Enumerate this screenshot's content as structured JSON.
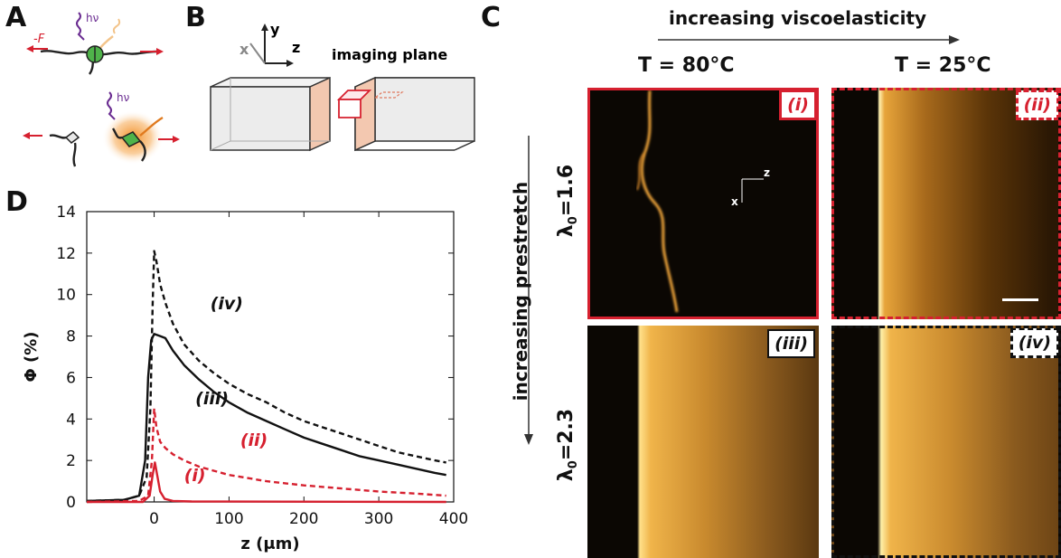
{
  "panels": {
    "a": "A",
    "b": "B",
    "c": "C",
    "d": "D"
  },
  "panel_a": {
    "hv_top": "hν",
    "hv_bottom": "hν",
    "force": "-F"
  },
  "panel_b": {
    "axis_x": "x",
    "axis_y": "y",
    "axis_z": "z",
    "imaging_plane": "imaging plane"
  },
  "panel_c": {
    "top_arrow_label": "increasing viscoelasticity",
    "col_labels": [
      "T = 80°C",
      "T = 25°C"
    ],
    "side_arrow_label": "increasing prestretch",
    "row_labels": [
      "λ0=1.6",
      "λ0=2.3"
    ],
    "row_label_parts": [
      {
        "base": "λ",
        "sub": "0",
        "rest": "=1.6"
      },
      {
        "base": "λ",
        "sub": "0",
        "rest": "=2.3"
      }
    ],
    "tags": [
      "(i)",
      "(ii)",
      "(iii)",
      "(iv)"
    ],
    "inset_axis_z": "z",
    "inset_axis_x": "x",
    "colors": {
      "red_border": "#d6202f",
      "glow": "#f2a53a",
      "background": "#0b0703"
    }
  },
  "chart_data": {
    "type": "line",
    "title": "",
    "xlabel": "z (μm)",
    "ylabel": "Φ (%)",
    "xlim": [
      -90,
      400
    ],
    "ylim": [
      0,
      14
    ],
    "xticks": [
      0,
      100,
      200,
      300,
      400
    ],
    "yticks": [
      0,
      2,
      4,
      6,
      8,
      10,
      12,
      14
    ],
    "grid": false,
    "series": [
      {
        "name": "(iv)",
        "color": "#111111",
        "style": "dashed",
        "points": [
          [
            -90,
            0.05
          ],
          [
            -40,
            0.1
          ],
          [
            -20,
            0.3
          ],
          [
            -10,
            1.2
          ],
          [
            -5,
            4.5
          ],
          [
            -2,
            9.5
          ],
          [
            0,
            12.1
          ],
          [
            3,
            11.6
          ],
          [
            8,
            10.5
          ],
          [
            15,
            9.6
          ],
          [
            25,
            8.6
          ],
          [
            40,
            7.6
          ],
          [
            60,
            6.8
          ],
          [
            80,
            6.2
          ],
          [
            100,
            5.7
          ],
          [
            125,
            5.2
          ],
          [
            150,
            4.8
          ],
          [
            175,
            4.3
          ],
          [
            200,
            3.9
          ],
          [
            225,
            3.6
          ],
          [
            250,
            3.3
          ],
          [
            275,
            3.0
          ],
          [
            300,
            2.7
          ],
          [
            325,
            2.4
          ],
          [
            350,
            2.2
          ],
          [
            375,
            2.0
          ],
          [
            390,
            1.9
          ]
        ]
      },
      {
        "name": "(iii)",
        "color": "#111111",
        "style": "solid",
        "points": [
          [
            -90,
            0.05
          ],
          [
            -40,
            0.1
          ],
          [
            -20,
            0.3
          ],
          [
            -12,
            2.0
          ],
          [
            -8,
            6.0
          ],
          [
            -4,
            7.8
          ],
          [
            0,
            8.1
          ],
          [
            8,
            8.0
          ],
          [
            15,
            7.9
          ],
          [
            25,
            7.3
          ],
          [
            40,
            6.6
          ],
          [
            60,
            5.9
          ],
          [
            80,
            5.3
          ],
          [
            100,
            4.8
          ],
          [
            125,
            4.3
          ],
          [
            150,
            3.9
          ],
          [
            175,
            3.5
          ],
          [
            200,
            3.1
          ],
          [
            225,
            2.8
          ],
          [
            250,
            2.5
          ],
          [
            275,
            2.2
          ],
          [
            300,
            2.0
          ],
          [
            325,
            1.8
          ],
          [
            350,
            1.6
          ],
          [
            375,
            1.4
          ],
          [
            390,
            1.3
          ]
        ]
      },
      {
        "name": "(ii)",
        "color": "#d6202f",
        "style": "dashed",
        "points": [
          [
            -90,
            0.0
          ],
          [
            -20,
            0.05
          ],
          [
            -8,
            0.3
          ],
          [
            -3,
            2.0
          ],
          [
            0,
            4.5
          ],
          [
            3,
            3.6
          ],
          [
            8,
            2.9
          ],
          [
            15,
            2.6
          ],
          [
            25,
            2.3
          ],
          [
            40,
            2.0
          ],
          [
            60,
            1.7
          ],
          [
            80,
            1.5
          ],
          [
            100,
            1.3
          ],
          [
            125,
            1.15
          ],
          [
            150,
            1.0
          ],
          [
            175,
            0.9
          ],
          [
            200,
            0.8
          ],
          [
            250,
            0.65
          ],
          [
            300,
            0.5
          ],
          [
            350,
            0.4
          ],
          [
            390,
            0.3
          ]
        ]
      },
      {
        "name": "(i)",
        "color": "#d6202f",
        "style": "solid",
        "points": [
          [
            -90,
            0.0
          ],
          [
            -15,
            0.0
          ],
          [
            -6,
            0.3
          ],
          [
            -2,
            1.3
          ],
          [
            1,
            1.9
          ],
          [
            4,
            1.3
          ],
          [
            8,
            0.5
          ],
          [
            14,
            0.15
          ],
          [
            25,
            0.05
          ],
          [
            50,
            0.02
          ],
          [
            390,
            0.0
          ]
        ]
      }
    ],
    "annotations": [
      {
        "text": "(iv)",
        "x": 75,
        "y": 9.3,
        "color": "#111111"
      },
      {
        "text": "(iii)",
        "x": 55,
        "y": 4.7,
        "color": "#111111"
      },
      {
        "text": "(ii)",
        "x": 115,
        "y": 2.7,
        "color": "#d6202f"
      },
      {
        "text": "(i)",
        "x": 40,
        "y": 1.0,
        "color": "#d6202f"
      }
    ]
  }
}
